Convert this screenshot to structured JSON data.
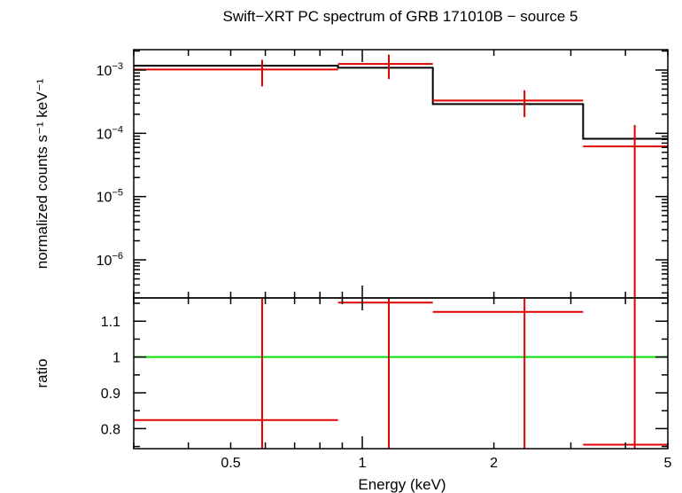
{
  "chart_data": {
    "type": "scatter",
    "title": "Swift−XRT PC spectrum of GRB 171010B − source 5",
    "xlabel": "Energy (keV)",
    "x_scale": "log",
    "xlim": [
      0.3,
      5.0
    ],
    "x_ticks": [
      {
        "value": 0.5,
        "label": "0.5"
      },
      {
        "value": 1,
        "label": "1"
      },
      {
        "value": 2,
        "label": "2"
      },
      {
        "value": 5,
        "label": "5"
      }
    ],
    "panels": [
      {
        "id": "spectrum",
        "ylabel": "normalized counts s⁻¹ keV⁻¹",
        "y_scale": "log",
        "ylim": [
          2.5e-07,
          0.0021
        ],
        "y_ticks": [
          {
            "value": 0.001,
            "base": "10",
            "exp": "−3"
          },
          {
            "value": 0.0001,
            "base": "10",
            "exp": "−4"
          },
          {
            "value": 1e-05,
            "base": "10",
            "exp": "−5"
          },
          {
            "value": 1e-06,
            "base": "10",
            "exp": "−6"
          }
        ],
        "data": [
          {
            "x_lo": 0.3,
            "x_hi": 0.88,
            "x": 0.59,
            "y": 0.00102,
            "y_lo": 0.00055,
            "y_hi": 0.00145
          },
          {
            "x_lo": 0.88,
            "x_hi": 1.45,
            "x": 1.15,
            "y": 0.00125,
            "y_lo": 0.00072,
            "y_hi": 0.00175
          },
          {
            "x_lo": 1.45,
            "x_hi": 3.2,
            "x": 2.35,
            "y": 0.00033,
            "y_lo": 0.00018,
            "y_hi": 0.00048
          },
          {
            "x_lo": 3.2,
            "x_hi": 5.0,
            "x": 4.2,
            "y": 6.2e-05,
            "y_lo": 2.5e-07,
            "y_hi": 0.000135
          }
        ],
        "model": [
          {
            "x_lo": 0.3,
            "x_hi": 0.88,
            "y": 0.00117
          },
          {
            "x_lo": 0.88,
            "x_hi": 1.45,
            "y": 0.00109
          },
          {
            "x_lo": 1.45,
            "x_hi": 3.2,
            "y": 0.00029
          },
          {
            "x_lo": 3.2,
            "x_hi": 5.0,
            "y": 8.2e-05
          }
        ]
      },
      {
        "id": "ratio",
        "ylabel": "ratio",
        "y_scale": "linear",
        "ylim": [
          0.744,
          1.165
        ],
        "y_ticks": [
          {
            "value": 0.8,
            "label": "0.8"
          },
          {
            "value": 0.9,
            "label": "0.9"
          },
          {
            "value": 1.0,
            "label": "1"
          },
          {
            "value": 1.1,
            "label": "1.1"
          }
        ],
        "reference_line": 1.0,
        "data": [
          {
            "x_lo": 0.3,
            "x_hi": 0.88,
            "x": 0.59,
            "y": 0.824,
            "y_lo": 0.744,
            "y_hi": 1.165
          },
          {
            "x_lo": 0.88,
            "x_hi": 1.45,
            "x": 1.15,
            "y": 1.152,
            "y_lo": 0.744,
            "y_hi": 1.165
          },
          {
            "x_lo": 1.45,
            "x_hi": 3.2,
            "x": 2.35,
            "y": 1.126,
            "y_lo": 0.744,
            "y_hi": 1.165
          },
          {
            "x_lo": 3.2,
            "x_hi": 5.0,
            "x": 4.2,
            "y": 0.755,
            "y_lo": 0.744,
            "y_hi": 1.165
          }
        ]
      }
    ],
    "colors": {
      "data": "#e00000",
      "model": "#000000",
      "reference": "#00e000"
    }
  }
}
